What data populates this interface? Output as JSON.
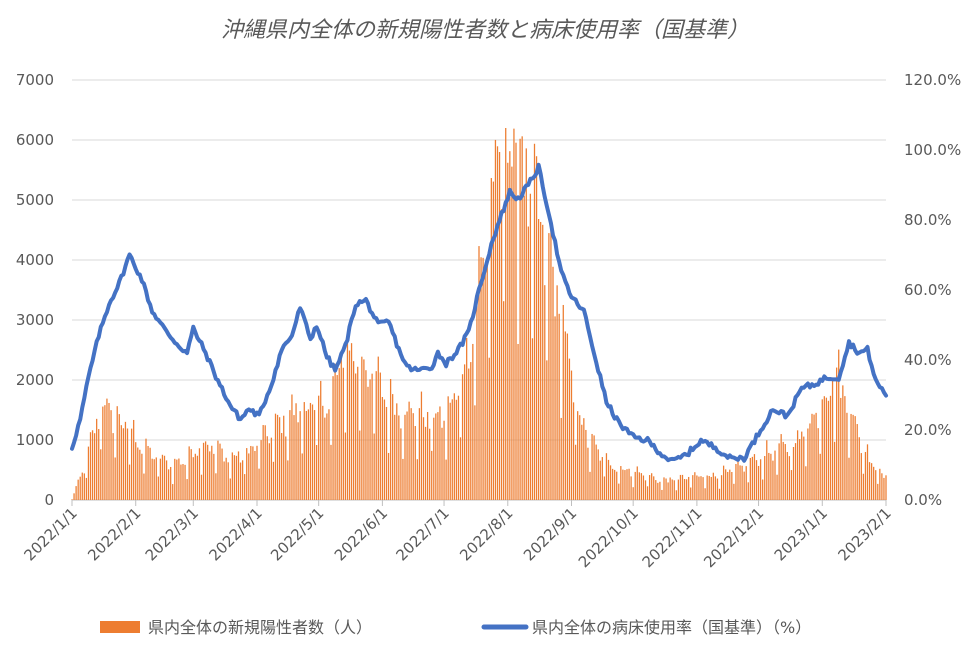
{
  "chart_data": {
    "title": "沖縄県内全体の新規陽性者数と病床使用率（国基準）",
    "type": "bar",
    "x_ticks": [
      "2022/1/1",
      "2022/2/1",
      "2022/3/1",
      "2022/4/1",
      "2022/5/1",
      "2022/6/1",
      "2022/7/1",
      "2022/8/1",
      "2022/9/1",
      "2022/10/1",
      "2022/11/1",
      "2022/12/1",
      "2023/1/1",
      "2023/2/1"
    ],
    "y_left_ticks": [
      "0",
      "1000",
      "2000",
      "3000",
      "4000",
      "5000",
      "6000",
      "7000"
    ],
    "y_right_ticks": [
      "0.0%",
      "20.0%",
      "40.0%",
      "60.0%",
      "80.0%",
      "100.0%",
      "120.0%"
    ],
    "ylim_left": [
      0,
      7000
    ],
    "ylim_right": [
      0,
      120
    ],
    "grid": true,
    "legend_position": "bottom",
    "series": [
      {
        "name": "県内全体の新規陽性者数（人）",
        "type": "bar",
        "axis": "left",
        "color": "#ed7d31",
        "weekly_anchors": [
          [
            "2022-01-01",
            20
          ],
          [
            "2022-01-08",
            600
          ],
          [
            "2022-01-15",
            1500
          ],
          [
            "2022-01-22",
            1300
          ],
          [
            "2022-01-29",
            1100
          ],
          [
            "2022-02-05",
            800
          ],
          [
            "2022-02-12",
            650
          ],
          [
            "2022-02-19",
            550
          ],
          [
            "2022-02-26",
            650
          ],
          [
            "2022-03-05",
            900
          ],
          [
            "2022-03-12",
            800
          ],
          [
            "2022-03-19",
            650
          ],
          [
            "2022-03-26",
            700
          ],
          [
            "2022-04-02",
            900
          ],
          [
            "2022-04-09",
            1100
          ],
          [
            "2022-04-16",
            1300
          ],
          [
            "2022-04-23",
            1450
          ],
          [
            "2022-04-30",
            1450
          ],
          [
            "2022-05-07",
            1600
          ],
          [
            "2022-05-14",
            2300
          ],
          [
            "2022-05-21",
            2200
          ],
          [
            "2022-05-28",
            1900
          ],
          [
            "2022-06-04",
            1600
          ],
          [
            "2022-06-11",
            1400
          ],
          [
            "2022-06-18",
            1350
          ],
          [
            "2022-06-25",
            1300
          ],
          [
            "2022-07-02",
            1300
          ],
          [
            "2022-07-09",
            1800
          ],
          [
            "2022-07-16",
            2900
          ],
          [
            "2022-07-23",
            4400
          ],
          [
            "2022-07-30",
            5400
          ],
          [
            "2022-08-06",
            5500
          ],
          [
            "2022-08-13",
            4600
          ],
          [
            "2022-08-20",
            3900
          ],
          [
            "2022-08-27",
            2900
          ],
          [
            "2022-09-03",
            1500
          ],
          [
            "2022-09-10",
            900
          ],
          [
            "2022-09-17",
            650
          ],
          [
            "2022-09-24",
            500
          ],
          [
            "2022-10-01",
            450
          ],
          [
            "2022-10-08",
            380
          ],
          [
            "2022-10-15",
            300
          ],
          [
            "2022-10-22",
            320
          ],
          [
            "2022-10-29",
            360
          ],
          [
            "2022-11-05",
            380
          ],
          [
            "2022-11-12",
            400
          ],
          [
            "2022-11-19",
            460
          ],
          [
            "2022-11-26",
            560
          ],
          [
            "2022-12-03",
            700
          ],
          [
            "2022-12-10",
            780
          ],
          [
            "2022-12-17",
            850
          ],
          [
            "2022-12-24",
            1100
          ],
          [
            "2022-12-31",
            1500
          ],
          [
            "2023-01-07",
            2000
          ],
          [
            "2023-01-14",
            1500
          ],
          [
            "2023-01-21",
            800
          ],
          [
            "2023-01-28",
            500
          ],
          [
            "2023-02-01",
            350
          ]
        ]
      },
      {
        "name": "県内全体の病床使用率（国基準）（%）",
        "type": "line",
        "axis": "right",
        "color": "#4472c4",
        "points": [
          [
            "2022-01-01",
            15
          ],
          [
            "2022-01-05",
            23
          ],
          [
            "2022-01-09",
            35
          ],
          [
            "2022-01-14",
            47
          ],
          [
            "2022-01-19",
            56
          ],
          [
            "2022-01-24",
            62
          ],
          [
            "2022-01-29",
            70
          ],
          [
            "2022-02-04",
            63
          ],
          [
            "2022-02-09",
            54
          ],
          [
            "2022-02-16",
            48
          ],
          [
            "2022-02-22",
            44
          ],
          [
            "2022-02-26",
            42
          ],
          [
            "2022-03-01",
            49
          ],
          [
            "2022-03-07",
            42
          ],
          [
            "2022-03-13",
            34
          ],
          [
            "2022-03-19",
            27
          ],
          [
            "2022-03-24",
            23
          ],
          [
            "2022-03-28",
            26
          ],
          [
            "2022-04-02",
            24
          ],
          [
            "2022-04-08",
            33
          ],
          [
            "2022-04-13",
            43
          ],
          [
            "2022-04-18",
            47
          ],
          [
            "2022-04-22",
            55
          ],
          [
            "2022-04-27",
            46
          ],
          [
            "2022-04-30",
            50
          ],
          [
            "2022-05-05",
            41
          ],
          [
            "2022-05-09",
            37
          ],
          [
            "2022-05-14",
            44
          ],
          [
            "2022-05-19",
            56
          ],
          [
            "2022-05-24",
            57
          ],
          [
            "2022-05-30",
            50
          ],
          [
            "2022-06-04",
            51
          ],
          [
            "2022-06-09",
            43
          ],
          [
            "2022-06-13",
            38
          ],
          [
            "2022-06-18",
            37
          ],
          [
            "2022-06-25",
            38
          ],
          [
            "2022-06-28",
            42
          ],
          [
            "2022-07-02",
            39
          ],
          [
            "2022-07-08",
            43
          ],
          [
            "2022-07-13",
            48
          ],
          [
            "2022-07-18",
            60
          ],
          [
            "2022-07-24",
            73
          ],
          [
            "2022-07-28",
            80
          ],
          [
            "2022-08-02",
            88
          ],
          [
            "2022-08-06",
            86
          ],
          [
            "2022-08-11",
            90
          ],
          [
            "2022-08-16",
            95
          ],
          [
            "2022-08-21",
            82
          ],
          [
            "2022-08-27",
            65
          ],
          [
            "2022-09-01",
            58
          ],
          [
            "2022-09-07",
            54
          ],
          [
            "2022-09-12",
            42
          ],
          [
            "2022-09-18",
            28
          ],
          [
            "2022-09-24",
            22
          ],
          [
            "2022-10-01",
            18
          ],
          [
            "2022-10-08",
            17
          ],
          [
            "2022-10-15",
            13
          ],
          [
            "2022-10-20",
            11
          ],
          [
            "2022-10-27",
            13
          ],
          [
            "2022-11-03",
            17
          ],
          [
            "2022-11-10",
            15
          ],
          [
            "2022-11-17",
            12
          ],
          [
            "2022-11-24",
            12
          ],
          [
            "2022-11-30",
            18
          ],
          [
            "2022-12-08",
            26
          ],
          [
            "2022-12-15",
            24
          ],
          [
            "2022-12-22",
            32
          ],
          [
            "2022-12-28",
            33
          ],
          [
            "2023-01-03",
            35
          ],
          [
            "2023-01-09",
            35
          ],
          [
            "2023-01-14",
            45
          ],
          [
            "2023-01-19",
            42
          ],
          [
            "2023-01-23",
            43
          ],
          [
            "2023-01-27",
            34
          ],
          [
            "2023-02-01",
            30
          ]
        ]
      }
    ]
  }
}
